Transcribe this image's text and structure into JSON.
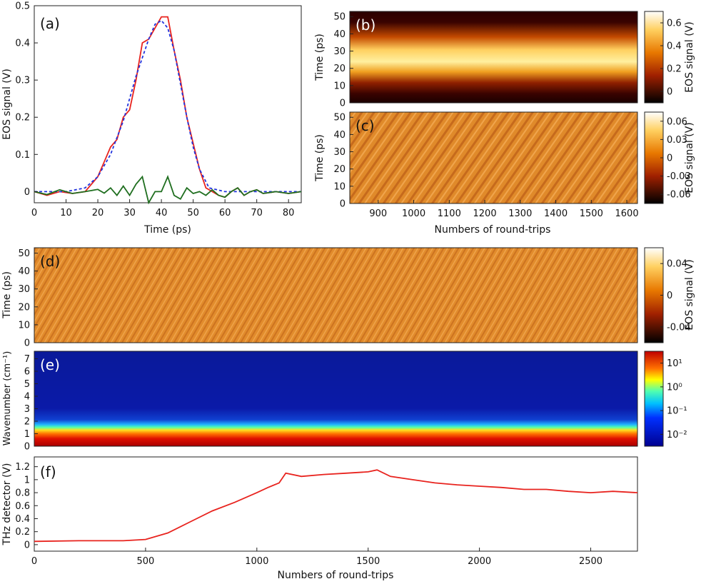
{
  "chart_data": [
    {
      "panel": "(a)",
      "type": "line",
      "xlabel": "Time (ps)",
      "ylabel": "EOS signal (V)",
      "xlim": [
        0,
        84
      ],
      "ylim": [
        -0.03,
        0.5
      ],
      "xticks": [
        0,
        10,
        20,
        30,
        40,
        50,
        60,
        70,
        80
      ],
      "yticks": [
        0,
        0.1,
        0.2,
        0.3,
        0.4,
        0.5
      ],
      "series": [
        {
          "color": "#e8231e",
          "style": "solid",
          "x": [
            0,
            4,
            8,
            12,
            16,
            18,
            20,
            22,
            24,
            26,
            28,
            30,
            32,
            34,
            36,
            38,
            40,
            42,
            44,
            46,
            48,
            50,
            52,
            54,
            56,
            58,
            60,
            62,
            64,
            66,
            68,
            70,
            72,
            76,
            80,
            84
          ],
          "y": [
            0.0,
            -0.01,
            0.0,
            -0.005,
            0.0,
            0.02,
            0.04,
            0.08,
            0.12,
            0.14,
            0.2,
            0.22,
            0.3,
            0.4,
            0.41,
            0.44,
            0.47,
            0.47,
            0.38,
            0.3,
            0.2,
            0.13,
            0.06,
            0.01,
            0.0,
            -0.01,
            -0.015,
            0.0,
            0.01,
            -0.01,
            0.0,
            0.005,
            -0.005,
            0.0,
            -0.005,
            0.0
          ]
        },
        {
          "color": "#2233dd",
          "style": "dash",
          "x": [
            0,
            10,
            16,
            20,
            24,
            28,
            32,
            36,
            38,
            40,
            42,
            44,
            46,
            48,
            50,
            52,
            55,
            60,
            84
          ],
          "y": [
            0,
            0.0,
            0.01,
            0.04,
            0.1,
            0.19,
            0.31,
            0.41,
            0.45,
            0.46,
            0.44,
            0.38,
            0.29,
            0.2,
            0.12,
            0.06,
            0.01,
            0.0,
            0.0
          ]
        },
        {
          "color": "#1f6e1f",
          "style": "solid",
          "x": [
            0,
            4,
            8,
            12,
            16,
            20,
            22,
            24,
            26,
            28,
            30,
            32,
            34,
            36,
            38,
            40,
            42,
            44,
            46,
            48,
            50,
            52,
            54,
            56,
            58,
            60,
            62,
            64,
            66,
            68,
            70,
            72,
            76,
            80,
            84
          ],
          "y": [
            0.0,
            -0.008,
            0.005,
            -0.005,
            0.0,
            0.006,
            -0.004,
            0.01,
            -0.01,
            0.015,
            -0.01,
            0.02,
            0.04,
            -0.03,
            0.0,
            0.0,
            0.04,
            -0.01,
            -0.02,
            0.01,
            -0.005,
            0.0,
            -0.01,
            0.005,
            -0.01,
            -0.015,
            0.0,
            0.01,
            -0.01,
            0.0,
            0.005,
            -0.005,
            0.0,
            -0.005,
            0.0
          ]
        }
      ]
    },
    {
      "panel": "(b)",
      "type": "heatmap",
      "ylabel": "Time (ps)",
      "xlim": [
        820,
        1630
      ],
      "ylim": [
        0,
        53
      ],
      "yticks": [
        0,
        10,
        20,
        30,
        40,
        50
      ],
      "colorbar_label": "EOS signal (V)",
      "colorbar_ticks": [
        "0.6",
        "0.4",
        "0.2",
        "0"
      ],
      "colormap": "hot"
    },
    {
      "panel": "(c)",
      "type": "heatmap",
      "xlabel": "Numbers of round-trips",
      "ylabel": "Time (ps)",
      "xlim": [
        820,
        1630
      ],
      "ylim": [
        0,
        53
      ],
      "xticks": [
        900,
        1000,
        1100,
        1200,
        1300,
        1400,
        1500,
        1600
      ],
      "yticks": [
        0,
        10,
        20,
        30,
        40,
        50
      ],
      "colorbar_label": "EOS signal (V)",
      "colorbar_ticks": [
        "0.06",
        "0.03",
        "0",
        "-0.03",
        "-0.06"
      ],
      "colormap": "hot"
    },
    {
      "panel": "(d)",
      "type": "heatmap",
      "ylabel": "Time (ps)",
      "xlim": [
        0,
        2710
      ],
      "ylim": [
        0,
        53
      ],
      "yticks": [
        0,
        10,
        20,
        30,
        40,
        50
      ],
      "colorbar_label": "EOS signal (V)",
      "colorbar_ticks": [
        "0.04",
        "0",
        "-0.04"
      ],
      "colormap": "hot"
    },
    {
      "panel": "(e)",
      "type": "heatmap",
      "ylabel": "Wavenumber (cm⁻¹)",
      "xlim": [
        0,
        2710
      ],
      "ylim": [
        0,
        7.6
      ],
      "yticks": [
        0,
        1,
        2,
        3,
        4,
        5,
        6,
        7
      ],
      "colorbar_ticks": [
        "10¹",
        "10⁰",
        "10⁻¹",
        "10⁻²"
      ],
      "colorbar_scale": "log",
      "colormap": "jet"
    },
    {
      "panel": "(f)",
      "type": "line",
      "xlabel": "Numbers of round-trips",
      "ylabel": "THz detector (V)",
      "xlim": [
        0,
        2710
      ],
      "ylim": [
        -0.1,
        1.35
      ],
      "xticks": [
        0,
        500,
        1000,
        1500,
        2000,
        2500
      ],
      "yticks": [
        0,
        0.2,
        0.4,
        0.6,
        0.8,
        1,
        1.2
      ],
      "series": [
        {
          "color": "#e8231e",
          "x": [
            0,
            200,
            400,
            500,
            600,
            700,
            800,
            900,
            1000,
            1050,
            1100,
            1130,
            1200,
            1300,
            1400,
            1500,
            1540,
            1600,
            1700,
            1800,
            1900,
            2000,
            2100,
            2200,
            2300,
            2400,
            2500,
            2600,
            2710
          ],
          "y": [
            0.05,
            0.06,
            0.06,
            0.08,
            0.18,
            0.35,
            0.52,
            0.65,
            0.8,
            0.88,
            0.95,
            1.1,
            1.05,
            1.08,
            1.1,
            1.12,
            1.15,
            1.05,
            1.0,
            0.95,
            0.92,
            0.9,
            0.88,
            0.85,
            0.85,
            0.82,
            0.8,
            0.82,
            0.8
          ]
        }
      ]
    }
  ]
}
